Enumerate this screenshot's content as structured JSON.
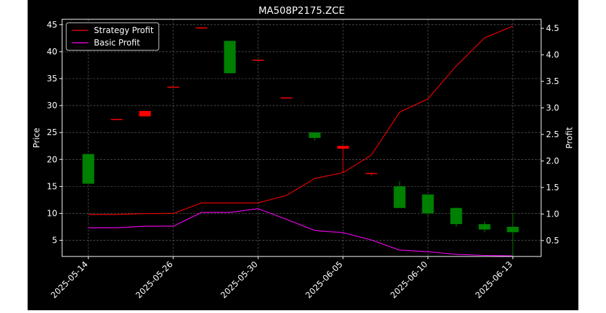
{
  "chart_data": {
    "type": "candlestick+line",
    "title": "MA508P2175.ZCE",
    "xlabel": "",
    "ylabel_left": "Price",
    "ylabel_right": "Profit",
    "ylim_left": [
      2,
      46
    ],
    "ylim_right": [
      0.2,
      4.67
    ],
    "yticks_left": [
      5,
      10,
      15,
      20,
      25,
      30,
      35,
      40,
      45
    ],
    "yticks_right": [
      0.5,
      1.0,
      1.5,
      2.0,
      2.5,
      3.0,
      3.5,
      4.0,
      4.5
    ],
    "x_tick_labels": [
      "2025-05-14",
      "2025-05-26",
      "2025-05-30",
      "2025-06-05",
      "2025-06-10",
      "2025-06-13"
    ],
    "x_tick_positions": [
      0,
      3,
      6,
      9,
      12,
      15
    ],
    "grid": true,
    "legend_position": "top-left",
    "colors": {
      "up": "#008000",
      "down": "#ff0000",
      "strategy": "#ff0000",
      "basic": "#ff00ff",
      "fg": "#ffffff",
      "bg": "#000000"
    },
    "candles": [
      {
        "x": 0,
        "open": 15.5,
        "close": 21.0,
        "high": 21.0,
        "low": 15.5
      },
      {
        "x": 1,
        "open": 27.5,
        "close": 27.5,
        "high": 27.5,
        "low": 27.5
      },
      {
        "x": 2,
        "open": 28.0,
        "close": 29.0,
        "high": 29.0,
        "low": 28.0
      },
      {
        "x": 3,
        "open": 33.5,
        "close": 33.5,
        "high": 33.5,
        "low": 33.5
      },
      {
        "x": 4,
        "open": 44.5,
        "close": 44.5,
        "high": 44.5,
        "low": 44.5
      },
      {
        "x": 5,
        "open": 36.0,
        "close": 42.0,
        "high": 42.0,
        "low": 36.0
      },
      {
        "x": 6,
        "open": 38.5,
        "close": 38.5,
        "high": 38.5,
        "low": 38.5
      },
      {
        "x": 7,
        "open": 31.5,
        "close": 31.5,
        "high": 31.5,
        "low": 31.5
      },
      {
        "x": 8,
        "open": 24.0,
        "close": 25.0,
        "high": 25.0,
        "low": 23.5
      },
      {
        "x": 9,
        "open": 22.0,
        "close": 22.5,
        "high": 22.5,
        "low": 17.5
      },
      {
        "x": 10,
        "open": 17.5,
        "close": 17.5,
        "high": 17.5,
        "low": 17.0
      },
      {
        "x": 11,
        "open": 11.0,
        "close": 15.0,
        "high": 16.0,
        "low": 11.0
      },
      {
        "x": 12,
        "open": 10.0,
        "close": 13.5,
        "high": 13.5,
        "low": 9.5
      },
      {
        "x": 13,
        "open": 8.0,
        "close": 11.0,
        "high": 11.0,
        "low": 7.5
      },
      {
        "x": 14,
        "open": 7.0,
        "close": 8.0,
        "high": 8.5,
        "low": 6.5
      },
      {
        "x": 15,
        "open": 6.5,
        "close": 7.5,
        "high": 10.0,
        "low": 2.0
      }
    ],
    "candle_colors": [
      "up",
      "down",
      "down",
      "down",
      "down",
      "up",
      "down",
      "down",
      "up",
      "down",
      "down",
      "up",
      "up",
      "up",
      "up",
      "up"
    ],
    "series": [
      {
        "name": "Strategy Profit",
        "axis": "right",
        "color": "#ff0000",
        "values": [
          0.99,
          0.99,
          1.01,
          1.01,
          1.21,
          1.21,
          1.21,
          1.35,
          1.67,
          1.78,
          2.11,
          2.92,
          3.17,
          3.79,
          4.32,
          4.54
        ]
      },
      {
        "name": "Basic Profit",
        "axis": "right",
        "color": "#ff00ff",
        "values": [
          0.74,
          0.74,
          0.77,
          0.77,
          1.03,
          1.03,
          1.1,
          0.9,
          0.69,
          0.65,
          0.51,
          0.32,
          0.29,
          0.24,
          0.22,
          0.21
        ]
      }
    ]
  }
}
